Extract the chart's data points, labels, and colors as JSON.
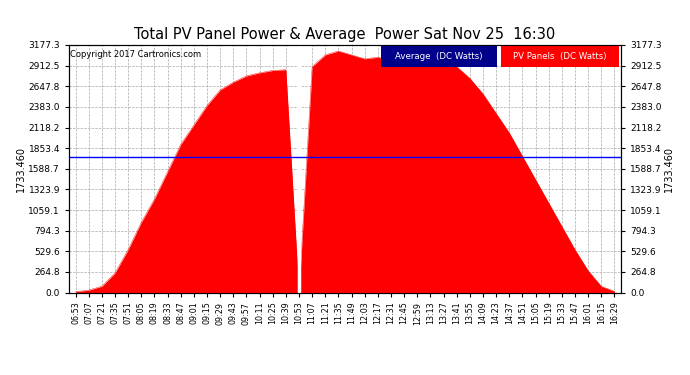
{
  "title": "Total PV Panel Power & Average  Power Sat Nov 25  16:30",
  "copyright": "Copyright 2017 Cartronics.com",
  "avg_value": 1733.46,
  "avg_label": "1733.460",
  "y_max": 3177.3,
  "y_min": 0.0,
  "yticks": [
    0.0,
    264.8,
    529.6,
    794.3,
    1059.1,
    1323.9,
    1588.7,
    1853.4,
    2118.2,
    2383.0,
    2647.8,
    2912.5,
    3177.3
  ],
  "xtick_labels": [
    "06:53",
    "07:07",
    "07:21",
    "07:35",
    "07:51",
    "08:05",
    "08:19",
    "08:33",
    "08:47",
    "09:01",
    "09:15",
    "09:29",
    "09:43",
    "09:57",
    "10:11",
    "10:25",
    "10:39",
    "10:53",
    "11:07",
    "11:21",
    "11:35",
    "11:49",
    "12:03",
    "12:17",
    "12:31",
    "12:45",
    "12:59",
    "13:13",
    "13:27",
    "13:41",
    "13:55",
    "14:09",
    "14:23",
    "14:37",
    "14:51",
    "15:05",
    "15:19",
    "15:33",
    "15:47",
    "16:01",
    "16:15",
    "16:29"
  ],
  "fill_color": "#ff0000",
  "line_color": "#ff0000",
  "avg_line_color": "#0000ff",
  "bg_color": "#ffffff",
  "grid_color": "#aaaaaa",
  "legend_avg_bg": "#00008b",
  "legend_pv_bg": "#ff0000",
  "legend_avg_text": "Average  (DC Watts)",
  "legend_pv_text": "PV Panels  (DC Watts)",
  "pv_values": [
    10,
    30,
    80,
    250,
    550,
    900,
    1200,
    1550,
    1900,
    2150,
    2400,
    2600,
    2700,
    2780,
    2820,
    2850,
    2860,
    0,
    2900,
    3050,
    3100,
    3050,
    3000,
    3020,
    2980,
    3010,
    2960,
    2950,
    2980,
    2900,
    2750,
    2550,
    2300,
    2050,
    1750,
    1450,
    1150,
    850,
    550,
    280,
    80,
    15
  ]
}
